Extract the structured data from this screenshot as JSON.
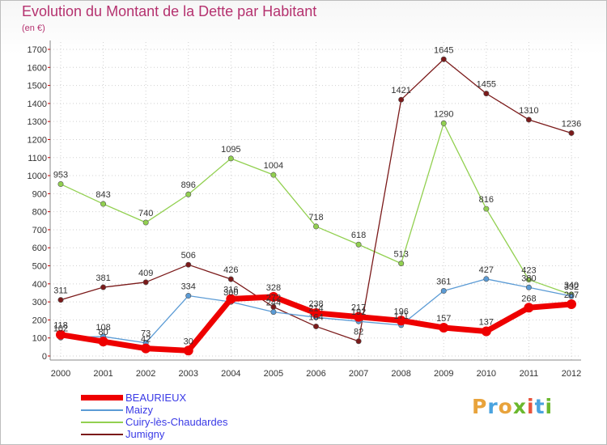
{
  "chart_data": {
    "type": "line",
    "title": "Evolution du Montant de la Dette par Habitant",
    "subtitle": "(en €)",
    "x": [
      "2000",
      "2001",
      "2002",
      "2003",
      "2004",
      "2005",
      "2006",
      "2007",
      "2008",
      "2009",
      "2010",
      "2011",
      "2012"
    ],
    "ylim": [
      0,
      1700
    ],
    "yticks": [
      0,
      100,
      200,
      300,
      400,
      500,
      600,
      700,
      800,
      900,
      1000,
      1100,
      1200,
      1300,
      1400,
      1500,
      1600,
      1700
    ],
    "grid": "horizontal dotted",
    "legend_position": "bottom-left",
    "series": [
      {
        "name": "BEAURIEUX",
        "color": "#ee0000",
        "values": [
          118,
          80,
          42,
          30,
          316,
          328,
          238,
          217,
          196,
          157,
          137,
          268,
          287
        ]
      },
      {
        "name": "Maizy",
        "color": "#5b9bd5",
        "values": [
          102,
          108,
          73,
          334,
          300,
          244,
          214,
          192,
          171,
          361,
          427,
          380,
          332
        ]
      },
      {
        "name": "Cuiry-lès-Chaudardes",
        "color": "#92d050",
        "values": [
          953,
          843,
          740,
          896,
          1095,
          1004,
          718,
          618,
          513,
          1290,
          816,
          423,
          340
        ]
      },
      {
        "name": "Jumigny",
        "color": "#7b1a1a",
        "values": [
          311,
          381,
          409,
          506,
          426,
          272,
          164,
          82,
          1421,
          1645,
          1455,
          1310,
          1236
        ]
      }
    ]
  },
  "logo": {
    "letters": [
      "P",
      "r",
      "o",
      "x",
      "i",
      "t",
      "i"
    ],
    "colors": [
      "#e8a33c",
      "#4aa3df",
      "#e8a33c",
      "#6bb82e",
      "#e8533c",
      "#4aa3df",
      "#6bb82e"
    ]
  }
}
